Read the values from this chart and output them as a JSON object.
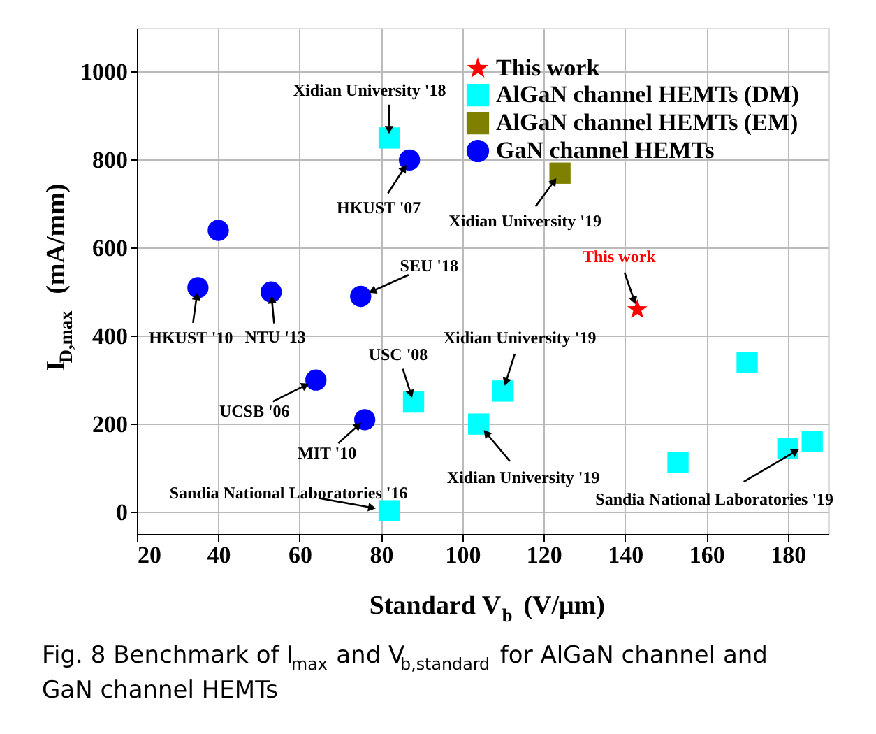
{
  "chart_data": {
    "type": "scatter",
    "xlabel": "Standard V$_{b}$ (V/μm)",
    "ylabel": "I$_{D,max}$ (mA/mm)",
    "xlim": [
      20,
      190
    ],
    "ylim": [
      -50,
      1100
    ],
    "xticks": [
      20,
      40,
      60,
      80,
      100,
      120,
      140,
      160,
      180
    ],
    "yticks": [
      0,
      200,
      400,
      600,
      800,
      1000
    ],
    "grid": true,
    "legend": "top right",
    "series": [
      {
        "name": "This work",
        "color": "#ff0000",
        "marker": "star",
        "x": [
          143
        ],
        "values": [
          460
        ]
      },
      {
        "name": "AlGaN channel HEMTs (DM)",
        "color": "#00ffff",
        "marker": "square",
        "x": [
          82,
          88,
          82,
          104,
          110,
          153,
          170,
          180,
          186
        ],
        "values": [
          850,
          250,
          3,
          200,
          275,
          113,
          340,
          145,
          160
        ]
      },
      {
        "name": "AlGaN channel HEMTs (EM)",
        "color": "#808000",
        "marker": "square",
        "x": [
          124
        ],
        "values": [
          770
        ]
      },
      {
        "name": "GaN channel HEMTs",
        "color": "#0000ff",
        "marker": "circle",
        "x": [
          35,
          40,
          53,
          75,
          64,
          76,
          87
        ],
        "values": [
          510,
          640,
          500,
          490,
          300,
          210,
          800
        ]
      }
    ],
    "annotations": [
      {
        "text": "Xidian University '18",
        "x": 82,
        "y": 850
      },
      {
        "text": "HKUST '07",
        "x": 87,
        "y": 800
      },
      {
        "text": "Xidian University '19",
        "x": 124,
        "y": 770
      },
      {
        "text": "This work",
        "x": 143,
        "y": 460
      },
      {
        "text": "SEU '18",
        "x": 75,
        "y": 490
      },
      {
        "text": "HKUST '10",
        "x": 35,
        "y": 510
      },
      {
        "text": "NTU '13",
        "x": 53,
        "y": 500
      },
      {
        "text": "UCSB '06",
        "x": 64,
        "y": 300
      },
      {
        "text": "MIT '10",
        "x": 76,
        "y": 210
      },
      {
        "text": "USC '08",
        "x": 88,
        "y": 250
      },
      {
        "text": "Xidian University '19",
        "x": 110,
        "y": 275
      },
      {
        "text": "Xidian University '19",
        "x": 104,
        "y": 200
      },
      {
        "text": "Sandia National Laboratories '16",
        "x": 82,
        "y": 3
      },
      {
        "text": "Sandia National Laboratories '19",
        "x": 186,
        "y": 160
      },
      "Fig. 8 Benchmark of I$_{max}$ and V$_{b,standard}$ for AlGaN channel and GaN channel HEMTs"
    ]
  }
}
